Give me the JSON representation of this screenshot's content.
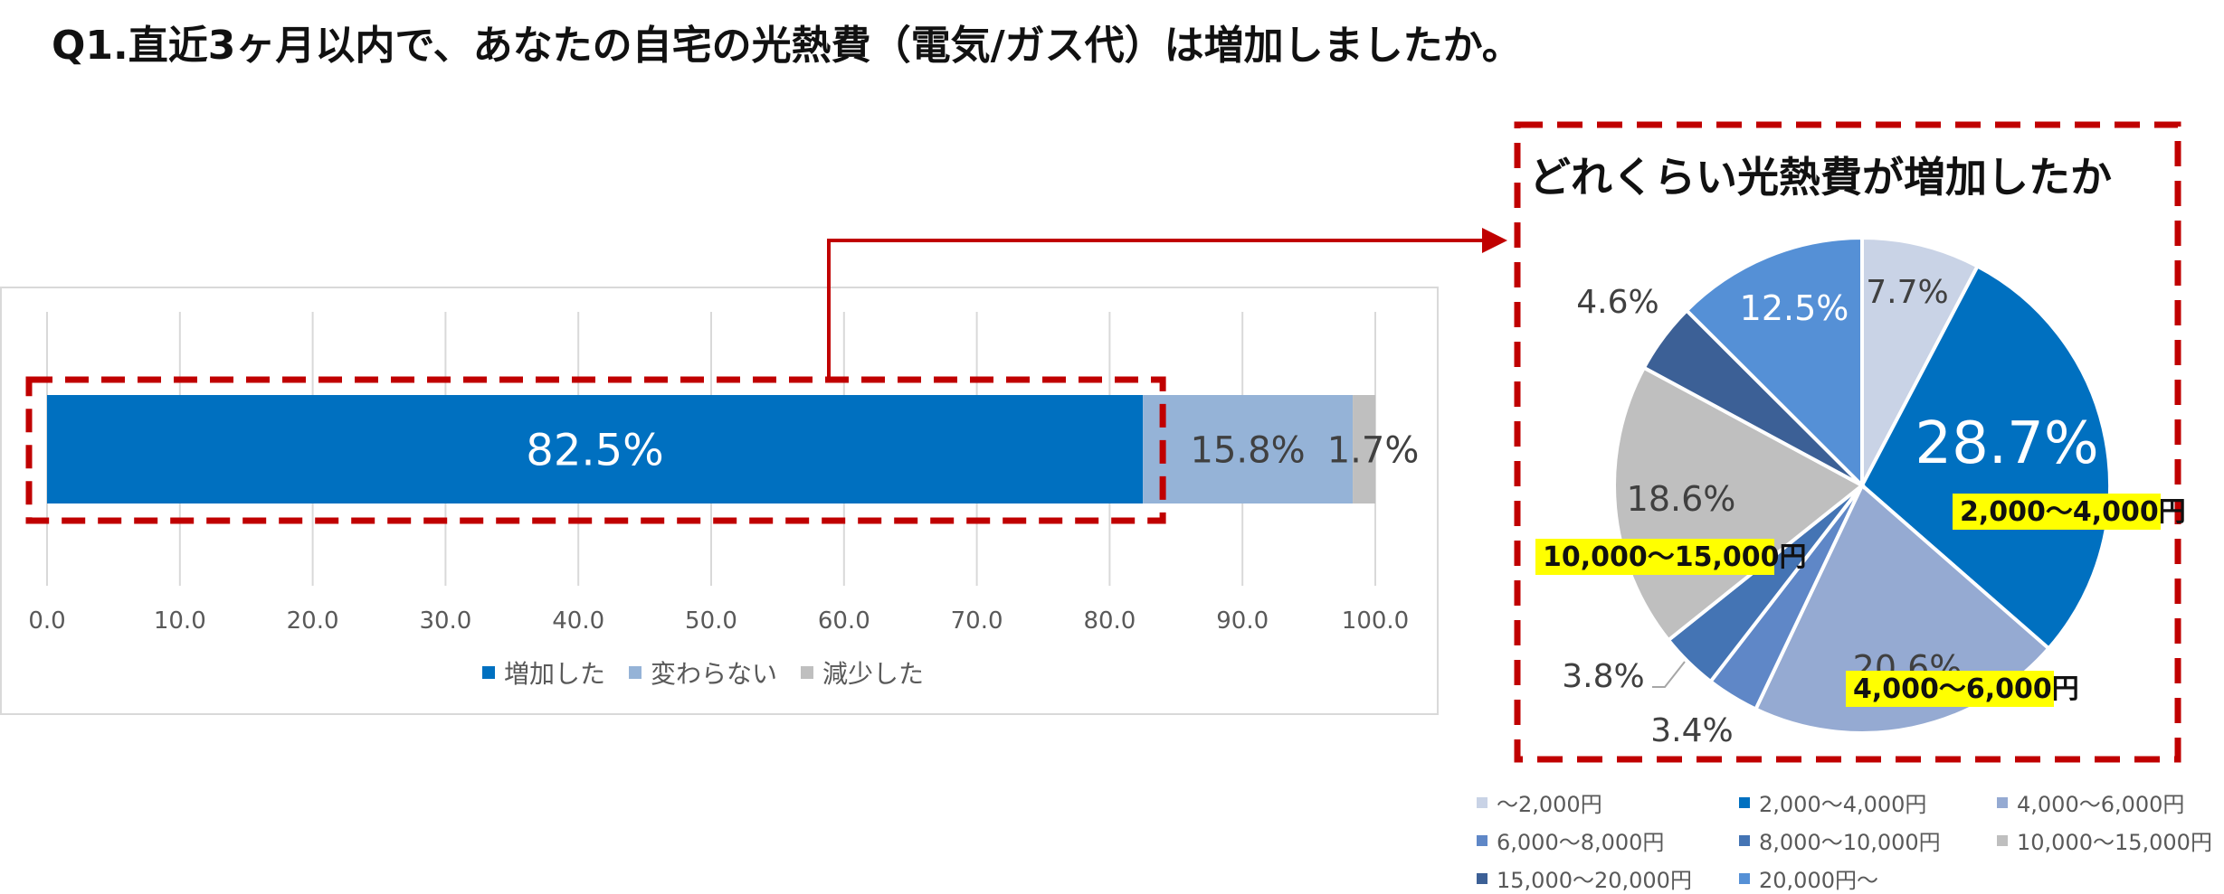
{
  "title": "Q1.直近3ヶ月以内で、あなたの自宅の光熱費（電気/ガス代）は増加しましたか。",
  "chart_data": [
    {
      "type": "bar",
      "orientation": "horizontal",
      "stacked": true,
      "series": [
        {
          "name": "増加した",
          "values": [
            82.5
          ],
          "label": "82.5%",
          "color": "#0070C0"
        },
        {
          "name": "変わらない",
          "values": [
            15.8
          ],
          "label": "15.8%",
          "color": "#95B3D7"
        },
        {
          "name": "減少した",
          "values": [
            1.7
          ],
          "label": "1.7%",
          "color": "#BFBFBF"
        }
      ],
      "xlim": [
        0,
        100
      ],
      "xticks": [
        "0.0",
        "10.0",
        "20.0",
        "30.0",
        "40.0",
        "50.0",
        "60.0",
        "70.0",
        "80.0",
        "90.0",
        "100.0"
      ],
      "grid": true,
      "legend_position": "bottom"
    },
    {
      "type": "pie",
      "title": "どれくらい光熱費が増加したか",
      "slices": [
        {
          "name": "～2,000円",
          "value": 7.7,
          "label": "7.7%",
          "color": "#C9D3E6"
        },
        {
          "name": "2,000～4,000円",
          "value": 28.7,
          "label": "28.7%",
          "color": "#0070C0",
          "callout": "2,000～4,000円"
        },
        {
          "name": "4,000～6,000円",
          "value": 20.6,
          "label": "20.6%",
          "color": "#95AAD2",
          "callout": "4,000～6,000円"
        },
        {
          "name": "6,000～8,000円",
          "value": 3.4,
          "label": "3.4%",
          "color": "#5F87C7"
        },
        {
          "name": "8,000～10,000円",
          "value": 3.8,
          "label": "3.8%",
          "color": "#4474B4"
        },
        {
          "name": "10,000～15,000円",
          "value": 18.6,
          "label": "18.6%",
          "color": "#BFBFBF",
          "callout": "10,000～15,000円"
        },
        {
          "name": "15,000～20,000円",
          "value": 4.6,
          "label": "4.6%",
          "color": "#3C6096"
        },
        {
          "name": "20,000円～",
          "value": 12.5,
          "label": "12.5%",
          "color": "#5590D6"
        }
      ],
      "legend_position": "bottom"
    }
  ]
}
